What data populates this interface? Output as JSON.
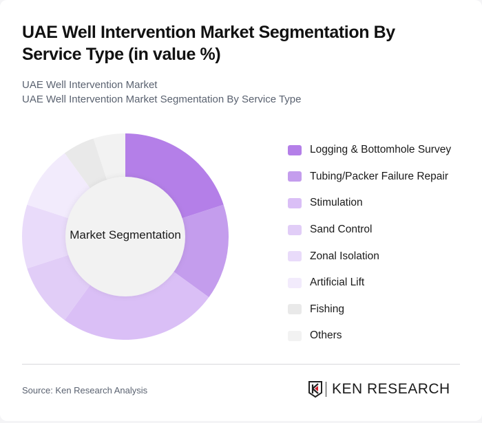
{
  "header": {
    "title": "UAE Well Intervention Market Segmentation By Service Type (in value %)",
    "subtitle_line1": "UAE Well Intervention Market",
    "subtitle_line2": "UAE Well Intervention Market Segmentation By Service Type"
  },
  "center_label": "Market Segmentation",
  "legend": [
    {
      "label": "Logging & Bottomhole Survey",
      "color": "#b47fe8"
    },
    {
      "label": "Tubing/Packer Failure Repair",
      "color": "#c49ded"
    },
    {
      "label": "Stimulation",
      "color": "#dabff6"
    },
    {
      "label": "Sand Control",
      "color": "#e1cdf7"
    },
    {
      "label": "Zonal Isolation",
      "color": "#e9dbfa"
    },
    {
      "label": "Artificial Lift",
      "color": "#f2ebfc"
    },
    {
      "label": "Fishing",
      "color": "#e9e9e9"
    },
    {
      "label": "Others",
      "color": "#f2f2f2"
    }
  ],
  "footer": {
    "source": "Source: Ken Research Analysis",
    "logo_text": "KEN RESEARCH"
  },
  "chart_data": {
    "type": "pie",
    "variant": "donut",
    "title": "UAE Well Intervention Market Segmentation By Service Type (in value %)",
    "center_label": "Market Segmentation",
    "categories": [
      "Logging & Bottomhole Survey",
      "Tubing/Packer Failure Repair",
      "Stimulation",
      "Sand Control",
      "Zonal Isolation",
      "Artificial Lift",
      "Fishing",
      "Others"
    ],
    "values": [
      20,
      15,
      25,
      10,
      10,
      10,
      5,
      5
    ],
    "colors": [
      "#b47fe8",
      "#c49ded",
      "#dabff6",
      "#e1cdf7",
      "#e9dbfa",
      "#f2ebfc",
      "#e9e9e9",
      "#f2f2f2"
    ],
    "legend_position": "right",
    "unit": "%"
  }
}
